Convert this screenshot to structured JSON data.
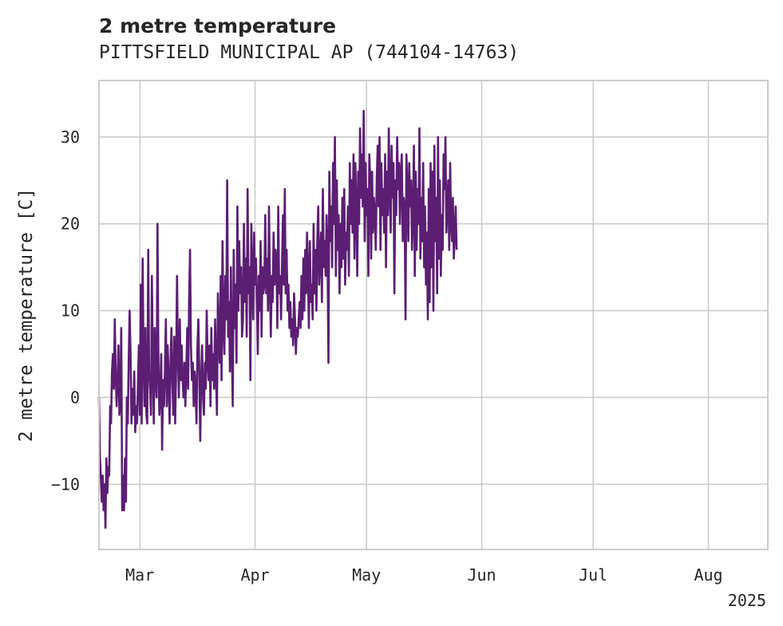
{
  "chart_data": {
    "type": "line",
    "title": "2 metre temperature",
    "subtitle": "PITTSFIELD MUNICIPAL AP (744104-14763)",
    "xlabel": "",
    "ylabel": "2 metre temperature [C]",
    "x_range": [
      "2025-02-18",
      "2025-08-17"
    ],
    "ylim": [
      -17.5,
      36.5
    ],
    "y_ticks": [
      -10,
      0,
      10,
      20,
      30
    ],
    "y_tick_labels": [
      "−10",
      "0",
      "10",
      "20",
      "30"
    ],
    "x_ticks": [
      {
        "date": "2025-03-01",
        "label": "Mar"
      },
      {
        "date": "2025-04-01",
        "label": "Apr"
      },
      {
        "date": "2025-05-01",
        "label": "May"
      },
      {
        "date": "2025-06-01",
        "label": "Jun"
      },
      {
        "date": "2025-07-01",
        "label": "Jul"
      },
      {
        "date": "2025-08-01",
        "label": "Aug"
      }
    ],
    "x_offset_label": "2025",
    "grid": true,
    "line_color": "#5b1e73",
    "series": [
      {
        "start": "2025-02-18T00:00",
        "step_hours": 6,
        "values": [
          0,
          -7,
          -9,
          -12,
          -9,
          -13,
          -10,
          -15,
          -7,
          -11,
          -8,
          -9,
          -1,
          -3,
          3,
          5,
          1,
          9,
          3,
          -1,
          2,
          6,
          -2,
          0,
          8,
          -13,
          -9,
          -13,
          -7,
          -12,
          0,
          -3,
          4,
          10,
          5,
          -3,
          1,
          -2,
          3,
          -4,
          -1,
          -3,
          2,
          6,
          -2,
          13,
          -3,
          16,
          4,
          -1,
          8,
          -2,
          -3,
          17,
          3,
          1,
          -2,
          14,
          4,
          -3,
          8,
          2,
          0,
          20,
          4,
          -2,
          1,
          5,
          -6,
          2,
          -1,
          3,
          9,
          -1,
          6,
          2,
          -3,
          4,
          8,
          2,
          -2,
          7,
          -3,
          3,
          14,
          5,
          0,
          9,
          2,
          6,
          2,
          0,
          4,
          -1,
          3,
          8,
          1,
          11,
          17,
          6,
          2,
          4,
          -1,
          3,
          1,
          -3,
          6,
          9,
          3,
          -5,
          2,
          6,
          0,
          -2,
          4,
          1,
          10,
          4,
          2,
          6,
          -1,
          8,
          2,
          5,
          1,
          9,
          3,
          -2,
          12,
          7,
          4,
          14,
          2,
          18,
          8,
          5,
          14,
          9,
          25,
          7,
          11,
          3,
          15,
          6,
          -1,
          17,
          8,
          13,
          4,
          22,
          10,
          18,
          12,
          15,
          7,
          9,
          20,
          11,
          16,
          7,
          24,
          12,
          15,
          2,
          20,
          14,
          9,
          19,
          13,
          16,
          11,
          5,
          14,
          10,
          18,
          7,
          15,
          12,
          13,
          21,
          12,
          16,
          10,
          22,
          13,
          7,
          14,
          11,
          19,
          13,
          17,
          16,
          8,
          22,
          12,
          14,
          9,
          15,
          21,
          13,
          24,
          12,
          17,
          10,
          13,
          8,
          11,
          7,
          9,
          6,
          12,
          9,
          5,
          8,
          7,
          9,
          11,
          8,
          14,
          9,
          16,
          10,
          17,
          12,
          19,
          14,
          8,
          18,
          11,
          13,
          9,
          20,
          12,
          17,
          10,
          18,
          22,
          13,
          16,
          19,
          11,
          24,
          15,
          18,
          14,
          21,
          17,
          4,
          26,
          18,
          22,
          15,
          27,
          20,
          30,
          14,
          25,
          17,
          21,
          12,
          20,
          15,
          23,
          16,
          24,
          13,
          19,
          17,
          22,
          14,
          27,
          20,
          25,
          19,
          28,
          16,
          27,
          22,
          14,
          26,
          20,
          31,
          23,
          28,
          22,
          33,
          18,
          27,
          21,
          24,
          14,
          28,
          25,
          16,
          26,
          19,
          23,
          21,
          17,
          25,
          29,
          22,
          30,
          17,
          27,
          21,
          24,
          19,
          28,
          15,
          26,
          21,
          31,
          24,
          19,
          29,
          23,
          27,
          12,
          25,
          21,
          30,
          24,
          27,
          20,
          26,
          28,
          18,
          23,
          22,
          9,
          28,
          24,
          18,
          27,
          22,
          25,
          17,
          21,
          29,
          14,
          26,
          17,
          24,
          20,
          31,
          16,
          23,
          18,
          27,
          15,
          22,
          13,
          19,
          9,
          24,
          11,
          27,
          15,
          26,
          10,
          29,
          18,
          23,
          12,
          30,
          16,
          25,
          14,
          21,
          17,
          28,
          24,
          30,
          19,
          22,
          25,
          17,
          27,
          20,
          18,
          23,
          16,
          19,
          22,
          17
        ]
      }
    ]
  }
}
